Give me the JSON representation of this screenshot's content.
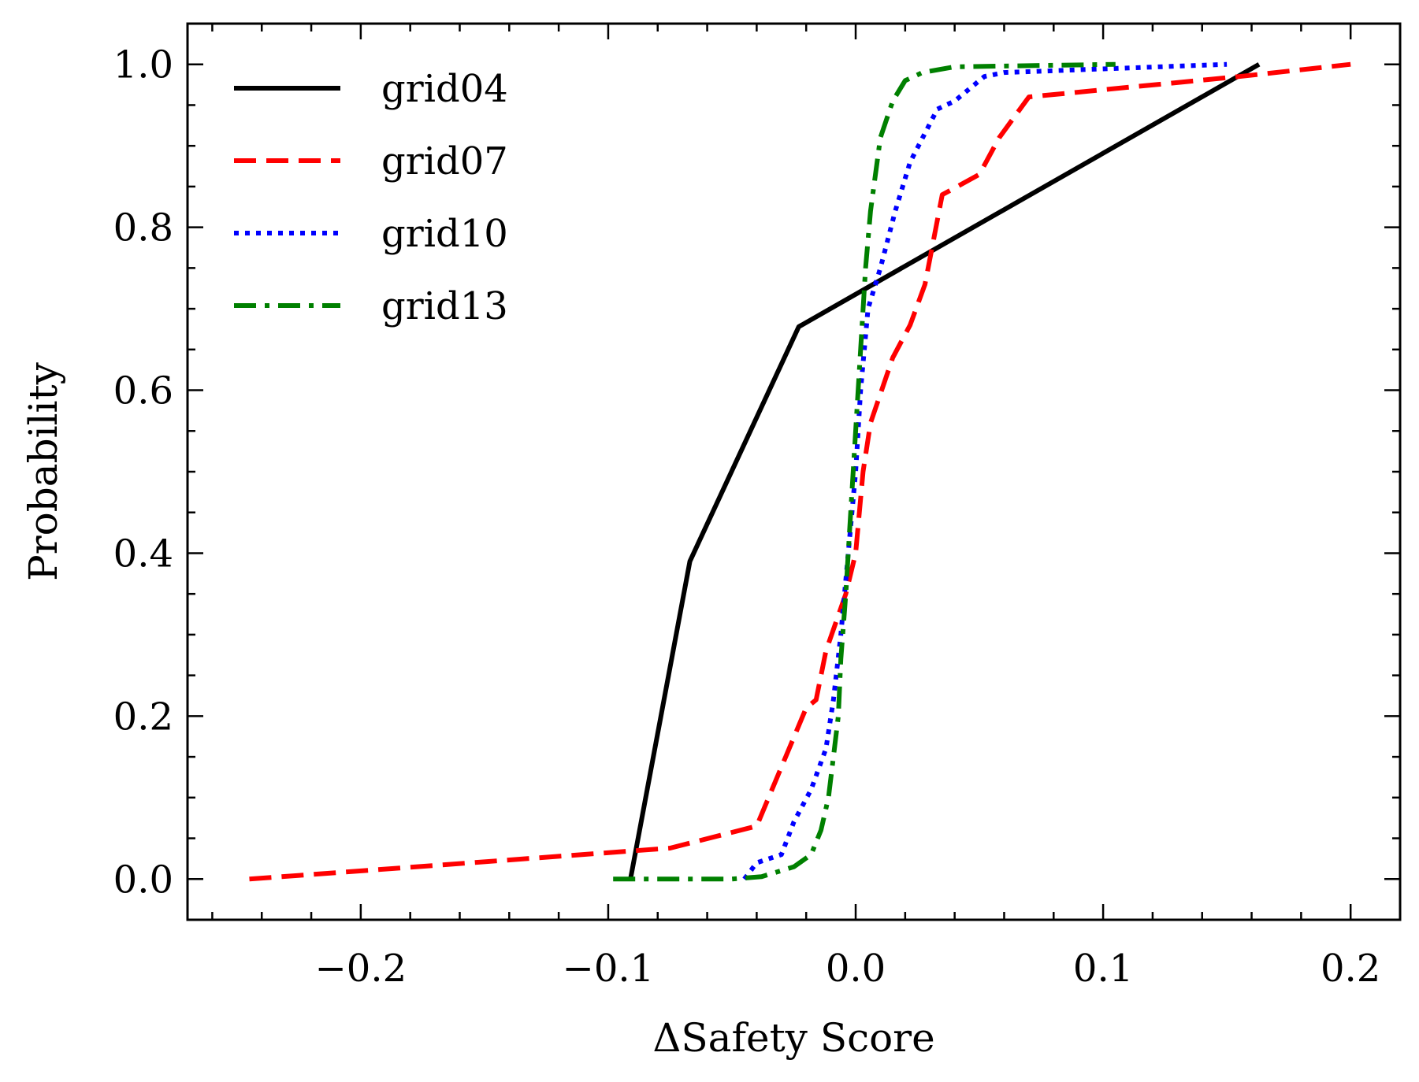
{
  "chart_data": {
    "type": "line",
    "title": "",
    "xlabel": "ΔSafety Score",
    "ylabel": "Probability",
    "xlim": [
      -0.27,
      0.22
    ],
    "ylim": [
      -0.05,
      1.05
    ],
    "x_ticks": [
      -0.2,
      -0.1,
      0.0,
      0.1,
      0.2
    ],
    "x_tick_labels": [
      "−0.2",
      "−0.1",
      "0.0",
      "0.1",
      "0.2"
    ],
    "y_ticks": [
      0.0,
      0.2,
      0.4,
      0.6,
      0.8,
      1.0
    ],
    "y_tick_labels": [
      "0.0",
      "0.2",
      "0.4",
      "0.6",
      "0.8",
      "1.0"
    ],
    "x_minor_step": 0.02,
    "y_minor_step": 0.05,
    "grid": false,
    "legend_position": "top-left",
    "series": [
      {
        "name": "grid04",
        "color": "#000000",
        "dash": "solid",
        "points": [
          [
            -0.091,
            0.0
          ],
          [
            -0.067,
            0.39
          ],
          [
            -0.023,
            0.678
          ],
          [
            0.163,
            1.0
          ]
        ]
      },
      {
        "name": "grid07",
        "color": "#ff0000",
        "dash": "dashed",
        "points": [
          [
            -0.245,
            0.0
          ],
          [
            -0.075,
            0.038
          ],
          [
            -0.04,
            0.065
          ],
          [
            -0.02,
            0.21
          ],
          [
            -0.016,
            0.22
          ],
          [
            -0.012,
            0.28
          ],
          [
            -0.004,
            0.35
          ],
          [
            0.0,
            0.4
          ],
          [
            0.003,
            0.5
          ],
          [
            0.006,
            0.56
          ],
          [
            0.015,
            0.64
          ],
          [
            0.022,
            0.68
          ],
          [
            0.028,
            0.73
          ],
          [
            0.035,
            0.84
          ],
          [
            0.05,
            0.865
          ],
          [
            0.058,
            0.91
          ],
          [
            0.07,
            0.96
          ],
          [
            0.155,
            0.985
          ],
          [
            0.2,
            1.0
          ]
        ]
      },
      {
        "name": "grid10",
        "color": "#0000ff",
        "dash": "dotted",
        "points": [
          [
            -0.045,
            0.0
          ],
          [
            -0.04,
            0.02
          ],
          [
            -0.03,
            0.03
          ],
          [
            -0.025,
            0.07
          ],
          [
            -0.018,
            0.11
          ],
          [
            -0.012,
            0.16
          ],
          [
            -0.009,
            0.22
          ],
          [
            -0.006,
            0.3
          ],
          [
            -0.003,
            0.4
          ],
          [
            0.0,
            0.5
          ],
          [
            0.002,
            0.6
          ],
          [
            0.005,
            0.7
          ],
          [
            0.01,
            0.75
          ],
          [
            0.016,
            0.82
          ],
          [
            0.022,
            0.88
          ],
          [
            0.033,
            0.945
          ],
          [
            0.04,
            0.955
          ],
          [
            0.052,
            0.985
          ],
          [
            0.06,
            0.99
          ],
          [
            0.15,
            1.0
          ]
        ]
      },
      {
        "name": "grid13",
        "color": "#008000",
        "dash": "dashdot",
        "points": [
          [
            -0.098,
            0.0
          ],
          [
            -0.05,
            0.0
          ],
          [
            -0.038,
            0.003
          ],
          [
            -0.025,
            0.015
          ],
          [
            -0.018,
            0.03
          ],
          [
            -0.014,
            0.06
          ],
          [
            -0.011,
            0.1
          ],
          [
            -0.009,
            0.15
          ],
          [
            -0.007,
            0.2
          ],
          [
            -0.006,
            0.27
          ],
          [
            -0.004,
            0.35
          ],
          [
            -0.002,
            0.45
          ],
          [
            0.0,
            0.55
          ],
          [
            0.002,
            0.65
          ],
          [
            0.004,
            0.75
          ],
          [
            0.006,
            0.82
          ],
          [
            0.01,
            0.91
          ],
          [
            0.015,
            0.955
          ],
          [
            0.02,
            0.98
          ],
          [
            0.027,
            0.99
          ],
          [
            0.04,
            0.997
          ],
          [
            0.105,
            1.0
          ]
        ]
      }
    ]
  }
}
